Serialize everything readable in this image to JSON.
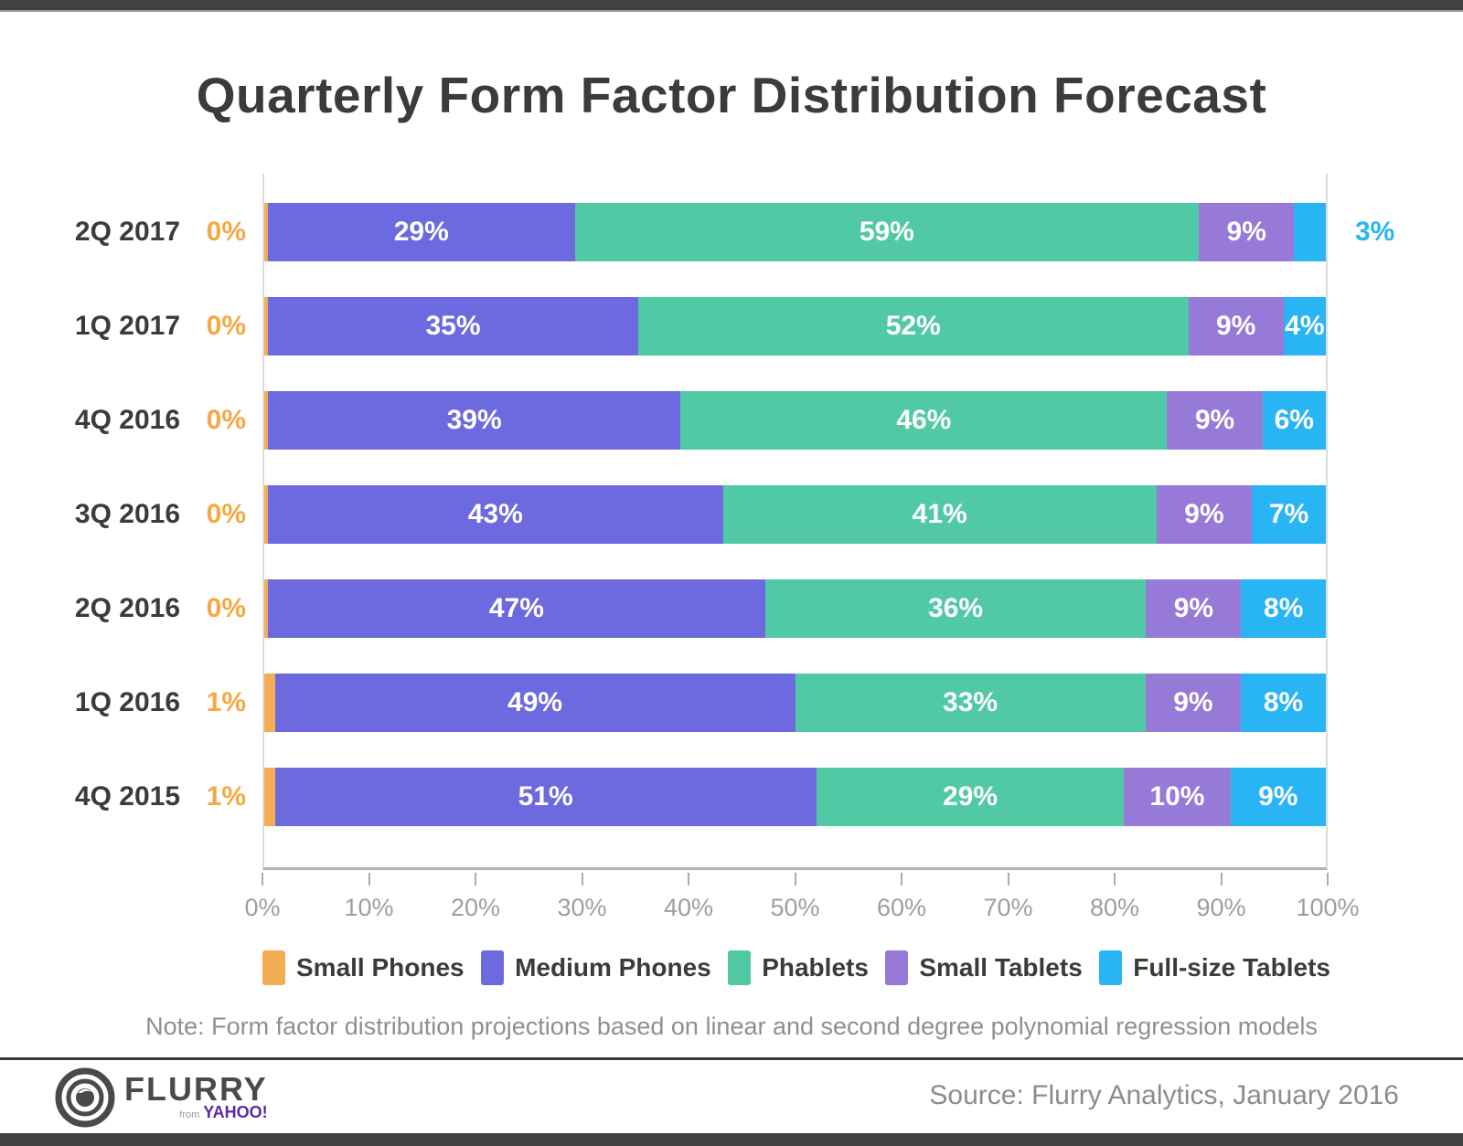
{
  "page": {
    "title": "Quarterly Form Factor Distribution Forecast",
    "note": "Note: Form factor distribution projections based on linear and second degree polynomial regression models"
  },
  "footer": {
    "source": "Source: Flurry Analytics, January 2016",
    "logo": {
      "brand": "FLURRY",
      "sub_from": "from",
      "sub_brand": "YAHOO!"
    }
  },
  "chart_data": {
    "type": "bar",
    "orientation": "horizontal-stacked",
    "title": "Quarterly Form Factor Distribution Forecast",
    "categories": [
      "2Q 2017",
      "1Q 2017",
      "4Q 2016",
      "3Q 2016",
      "2Q 2016",
      "1Q 2016",
      "4Q 2015"
    ],
    "series": [
      {
        "name": "Small Phones",
        "color": "#f3ae55",
        "values": [
          0,
          0,
          0,
          0,
          0,
          1,
          1
        ]
      },
      {
        "name": "Medium Phones",
        "color": "#6c6ade",
        "values": [
          29,
          35,
          39,
          43,
          47,
          49,
          51
        ]
      },
      {
        "name": "Phablets",
        "color": "#52c9a5",
        "values": [
          59,
          52,
          46,
          41,
          36,
          33,
          29
        ]
      },
      {
        "name": "Small Tablets",
        "color": "#9779d8",
        "values": [
          9,
          9,
          9,
          9,
          9,
          9,
          10
        ]
      },
      {
        "name": "Full-size Tablets",
        "color": "#29b4f4",
        "values": [
          3,
          4,
          6,
          7,
          8,
          8,
          9
        ]
      }
    ],
    "left_value_labels": [
      "0%",
      "0%",
      "0%",
      "0%",
      "0%",
      "1%",
      "1%"
    ],
    "x_ticks": [
      "0%",
      "10%",
      "20%",
      "30%",
      "40%",
      "50%",
      "60%",
      "70%",
      "80%",
      "90%",
      "100%"
    ],
    "xlim": [
      0,
      100
    ],
    "xlabel": "",
    "ylabel": "",
    "grid": false,
    "legend_position": "bottom",
    "colors": {
      "left_label": "#f5a843",
      "outside_label": "#29b4f4",
      "axis_text": "#9e9e9e",
      "title_text": "#3b3b3b"
    }
  }
}
